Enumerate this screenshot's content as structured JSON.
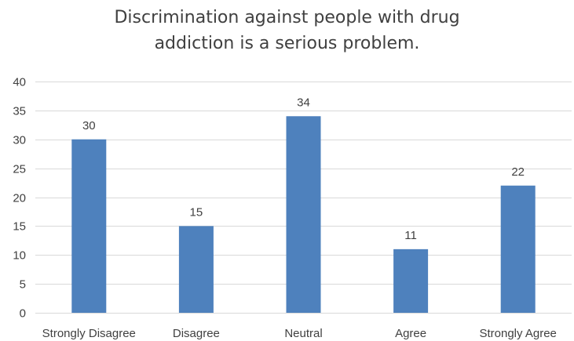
{
  "chart_data": {
    "type": "bar",
    "title": "Discrimination against people with drug addiction is a serious problem.",
    "title_lines": [
      "Discrimination against people with drug",
      "addiction is a serious problem."
    ],
    "categories": [
      "Strongly Disagree",
      "Disagree",
      "Neutral",
      "Agree",
      "Strongly Agree"
    ],
    "values": [
      30,
      15,
      34,
      11,
      22
    ],
    "data_labels": [
      "30",
      "15",
      "34",
      "11",
      "22"
    ],
    "xlabel": "",
    "ylabel": "",
    "ylim": [
      0,
      40
    ],
    "yticks": [
      0,
      5,
      10,
      15,
      20,
      25,
      30,
      35,
      40
    ],
    "ytick_labels": [
      "0",
      "5",
      "10",
      "15",
      "20",
      "25",
      "30",
      "35",
      "40"
    ],
    "grid": true,
    "legend": "none",
    "bar_color": "#4E81BD",
    "grid_color": "#D9D9D9",
    "text_color": "#404040"
  }
}
